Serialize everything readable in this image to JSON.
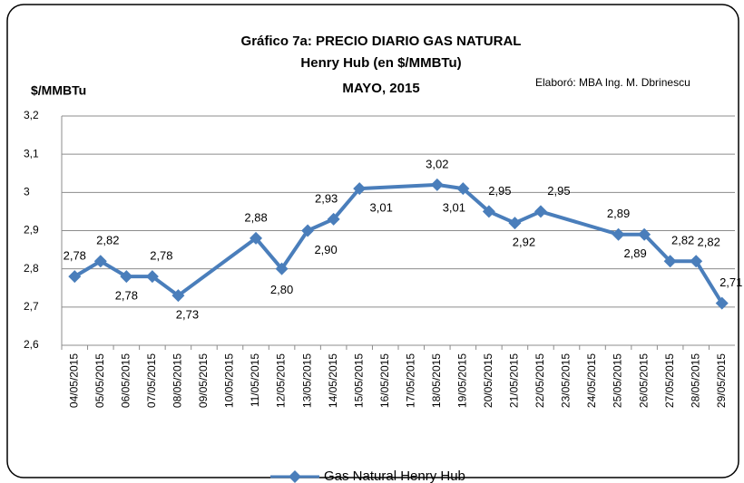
{
  "chart_data": {
    "type": "line",
    "title_lines": [
      "Gráfico 7a: PRECIO DIARIO GAS NATURAL",
      "Henry Hub (en $/MMBTu)",
      "MAYO, 2015"
    ],
    "ylabel": "$/MMBTu",
    "annotation": "Elaboró: MBA Ing. M. Dbrinescu",
    "categories": [
      "04/05/2015",
      "05/05/2015",
      "06/05/2015",
      "07/05/2015",
      "08/05/2015",
      "09/05/2015",
      "10/05/2015",
      "11/05/2015",
      "12/05/2015",
      "13/05/2015",
      "14/05/2015",
      "15/05/2015",
      "16/05/2015",
      "17/05/2015",
      "18/05/2015",
      "19/05/2015",
      "20/05/2015",
      "21/05/2015",
      "22/05/2015",
      "23/05/2015",
      "24/05/2015",
      "25/05/2015",
      "26/05/2015",
      "27/05/2015",
      "28/05/2015",
      "29/05/2015"
    ],
    "series": [
      {
        "name": "Gas Natural Henry Hub",
        "color": "#4a7ebb",
        "x": [
          "04/05/2015",
          "05/05/2015",
          "06/05/2015",
          "07/05/2015",
          "08/05/2015",
          "11/05/2015",
          "12/05/2015",
          "13/05/2015",
          "14/05/2015",
          "15/05/2015",
          "18/05/2015",
          "19/05/2015",
          "20/05/2015",
          "21/05/2015",
          "22/05/2015",
          "25/05/2015",
          "26/05/2015",
          "27/05/2015",
          "28/05/2015",
          "29/05/2015"
        ],
        "values": [
          2.78,
          2.82,
          2.78,
          2.78,
          2.73,
          2.88,
          2.8,
          2.9,
          2.93,
          3.01,
          3.02,
          3.01,
          2.95,
          2.92,
          2.95,
          2.89,
          2.89,
          2.82,
          2.82,
          2.71
        ],
        "value_labels": [
          "2,78",
          "2,82",
          "2,78",
          "2,78",
          "2,73",
          "2,88",
          "2,80",
          "2,90",
          "2,93",
          "3,01",
          "3,02",
          "3,01",
          "2,95",
          "2,92",
          "2,95",
          "2,89",
          "2,89",
          "2,82",
          "2,82",
          "2,71"
        ]
      }
    ],
    "ylim": [
      2.6,
      3.2
    ],
    "yticks": [
      {
        "value": 2.6,
        "label": "2,6"
      },
      {
        "value": 2.7,
        "label": "2,7"
      },
      {
        "value": 2.8,
        "label": "2,8"
      },
      {
        "value": 2.9,
        "label": "2,9"
      },
      3,
      {
        "value": 3.1,
        "label": "3,1"
      },
      {
        "value": 3.2,
        "label": "3,2"
      }
    ],
    "grid": true
  }
}
